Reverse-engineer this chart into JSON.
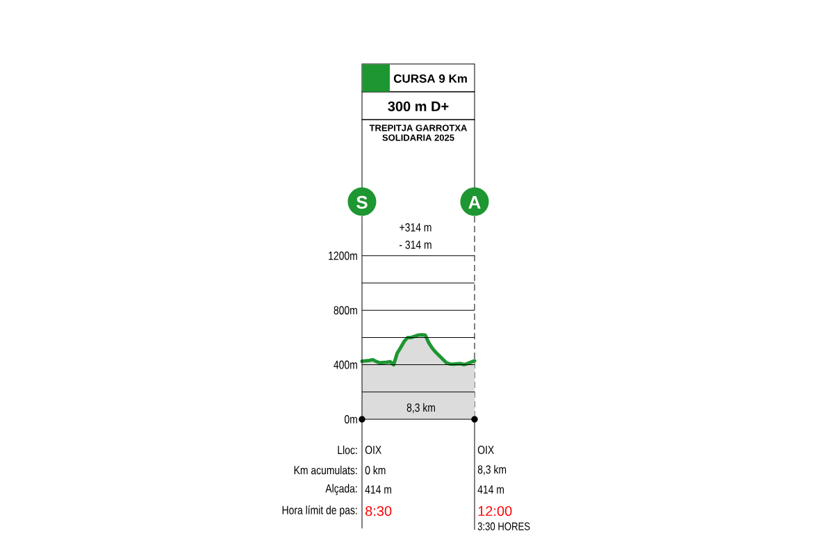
{
  "chart_data": {
    "type": "area",
    "title": "300 m D+",
    "subtitle": "TREPITJA GARROTXA SOLIDARIA 2025",
    "categories": [
      null,
      null,
      null,
      null,
      null,
      null,
      null,
      null,
      null,
      null,
      null,
      null,
      null,
      null,
      null,
      null,
      null,
      null,
      null,
      null,
      null,
      null,
      null,
      null,
      null,
      null,
      null,
      null,
      null,
      null,
      null,
      null,
      null
    ],
    "series": [
      {
        "name": "CURSA 9 Km",
        "color": "#1e9632",
        "values": [
          426,
          428,
          431,
          437,
          425,
          414,
          416,
          418,
          423,
          400,
          485,
          527,
          572,
          600,
          600,
          609,
          618,
          620,
          617,
          560,
          521,
          491,
          465,
          440,
          414,
          406,
          404,
          407,
          408,
          401,
          409,
          419,
          429
        ]
      },
      {
        "type": "scatter",
        "color": "#000000",
        "marker": "circle",
        "values": [
          0,
          null,
          null,
          null,
          null,
          null,
          null,
          null,
          null,
          null,
          null,
          null,
          null,
          null,
          null,
          null,
          null,
          null,
          null,
          null,
          null,
          null,
          null,
          null,
          null,
          null,
          null,
          null,
          null,
          null,
          null,
          null,
          0
        ]
      }
    ],
    "ylim": [
      0,
      1490
    ],
    "yticks": [
      {
        "value": 0,
        "label": "0m"
      },
      {
        "value": 200,
        "label": null
      },
      {
        "value": 400,
        "label": "400m"
      },
      {
        "value": 600,
        "label": null
      },
      {
        "value": 800,
        "label": "800m"
      },
      {
        "value": 1000,
        "label": null
      },
      {
        "value": 1200,
        "label": "1200m"
      }
    ],
    "grid": "y",
    "legend": "top",
    "tick_labels": "y",
    "annotations": [
      "+314 m",
      "- 314 m",
      "8,3 km",
      "S",
      "A",
      "Lloc:",
      "Km acumulats:",
      "Alçada:",
      "Hora límit de pas:",
      "OIX",
      "0 km",
      "414 m",
      "8:30",
      "OIX",
      "8,3 km",
      "414 m",
      "12:00",
      "3:30 HORES"
    ]
  }
}
